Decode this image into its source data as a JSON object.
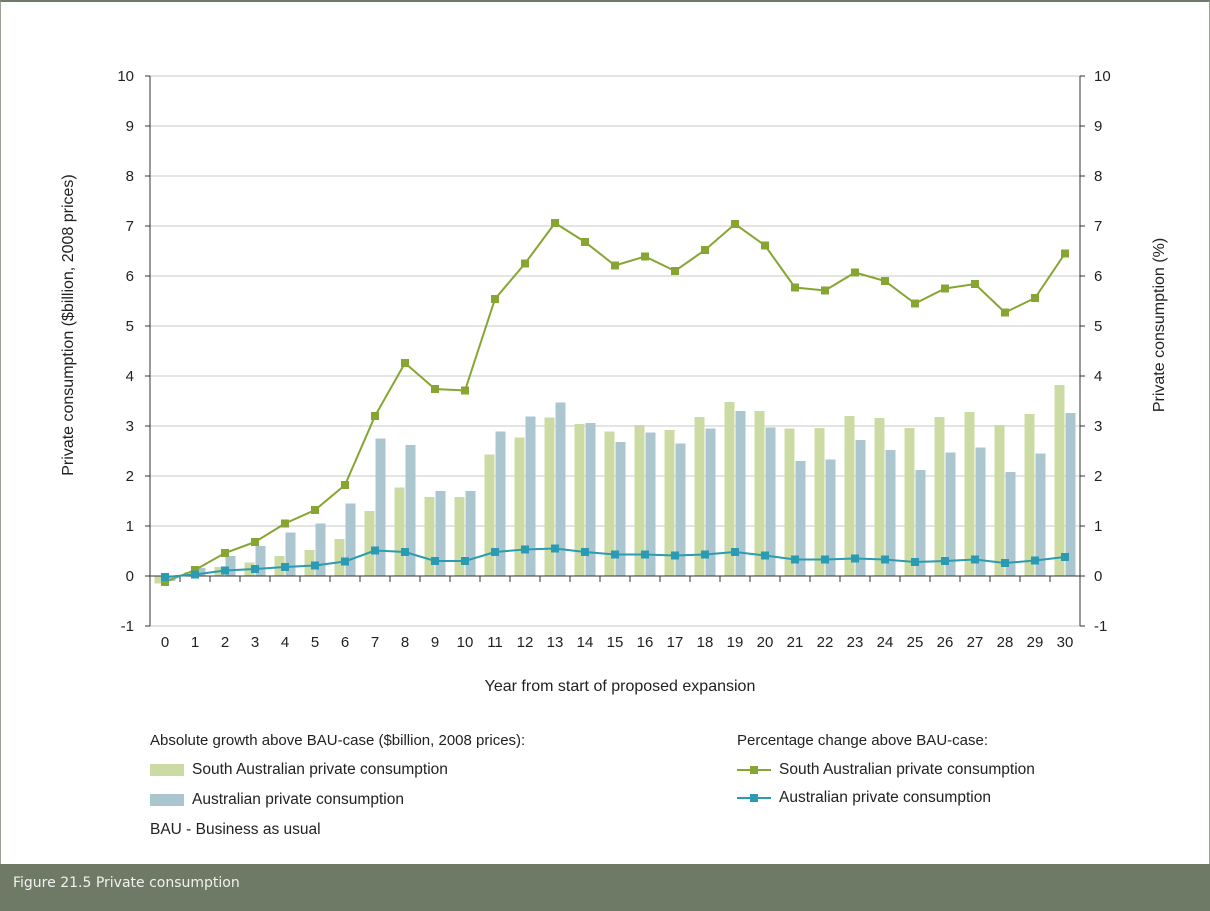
{
  "figure_caption": "Figure 21.5  Private consumption",
  "legend": {
    "left_heading": "Absolute growth above BAU-case ($billion, 2008 prices):",
    "right_heading": "Percentage change above BAU-case:",
    "bar_sa": "South Australian private consumption",
    "bar_au": "Australian private consumption",
    "line_sa": "South Australian private consumption",
    "line_au": "Australian private consumption"
  },
  "note": "BAU - Business as usual",
  "colors": {
    "bar_sa": "#ccdba3",
    "bar_au": "#abc6cf",
    "line_sa": "#86a531",
    "line_au": "#2a9bb2",
    "axis": "#333333",
    "caption_bg": "#6e7a66"
  },
  "chart_data": {
    "type": "bar",
    "xlabel": "Year from start of proposed expansion",
    "ylabel": "Private consumption ($billion, 2008 prices)",
    "y2label": "Private consumption (%)",
    "ylim": [
      -1,
      10
    ],
    "y2lim": [
      -1,
      10
    ],
    "yticks": [
      "-1",
      "0",
      "1",
      "2",
      "3",
      "4",
      "5",
      "6",
      "7",
      "8",
      "9",
      "10"
    ],
    "y2ticks": [
      "-1",
      "0",
      "1",
      "2",
      "3",
      "4",
      "5",
      "6",
      "7",
      "8",
      "9",
      "10"
    ],
    "grid": true,
    "categories": [
      "0",
      "1",
      "2",
      "3",
      "4",
      "5",
      "6",
      "7",
      "8",
      "9",
      "10",
      "11",
      "12",
      "13",
      "14",
      "15",
      "16",
      "17",
      "18",
      "19",
      "20",
      "21",
      "22",
      "23",
      "24",
      "25",
      "26",
      "27",
      "28",
      "29",
      "30"
    ],
    "series": [
      {
        "name": "South Australian private consumption",
        "kind": "bar",
        "axis": "left",
        "values": [
          -0.15,
          0.08,
          0.18,
          0.27,
          0.4,
          0.52,
          0.74,
          1.3,
          1.77,
          1.58,
          1.58,
          2.43,
          2.77,
          3.17,
          3.04,
          2.89,
          3.02,
          2.92,
          3.18,
          3.48,
          3.3,
          2.95,
          2.96,
          3.2,
          3.16,
          2.96,
          3.18,
          3.28,
          3.02,
          3.24,
          3.82
        ]
      },
      {
        "name": "Australian private consumption",
        "kind": "bar",
        "axis": "left",
        "values": [
          -0.1,
          0.16,
          0.4,
          0.6,
          0.87,
          1.05,
          1.45,
          2.75,
          2.62,
          1.7,
          1.7,
          2.89,
          3.19,
          3.47,
          3.06,
          2.68,
          2.87,
          2.65,
          2.95,
          3.3,
          2.97,
          2.3,
          2.33,
          2.72,
          2.52,
          2.12,
          2.47,
          2.57,
          2.08,
          2.45,
          3.26
        ]
      },
      {
        "name": "South Australian private consumption",
        "kind": "line",
        "axis": "right",
        "values": [
          -0.12,
          0.12,
          0.46,
          0.68,
          1.05,
          1.32,
          1.82,
          3.2,
          4.26,
          3.74,
          3.71,
          5.54,
          6.25,
          7.06,
          6.68,
          6.21,
          6.39,
          6.1,
          6.52,
          7.04,
          6.61,
          5.77,
          5.71,
          6.07,
          5.9,
          5.45,
          5.75,
          5.84,
          5.27,
          5.56,
          6.45
        ]
      },
      {
        "name": "Australian private consumption",
        "kind": "line",
        "axis": "right",
        "values": [
          -0.02,
          0.03,
          0.11,
          0.14,
          0.18,
          0.21,
          0.29,
          0.51,
          0.48,
          0.3,
          0.3,
          0.48,
          0.53,
          0.55,
          0.48,
          0.43,
          0.43,
          0.41,
          0.43,
          0.48,
          0.41,
          0.33,
          0.33,
          0.35,
          0.33,
          0.28,
          0.3,
          0.33,
          0.26,
          0.31,
          0.38
        ]
      }
    ]
  }
}
